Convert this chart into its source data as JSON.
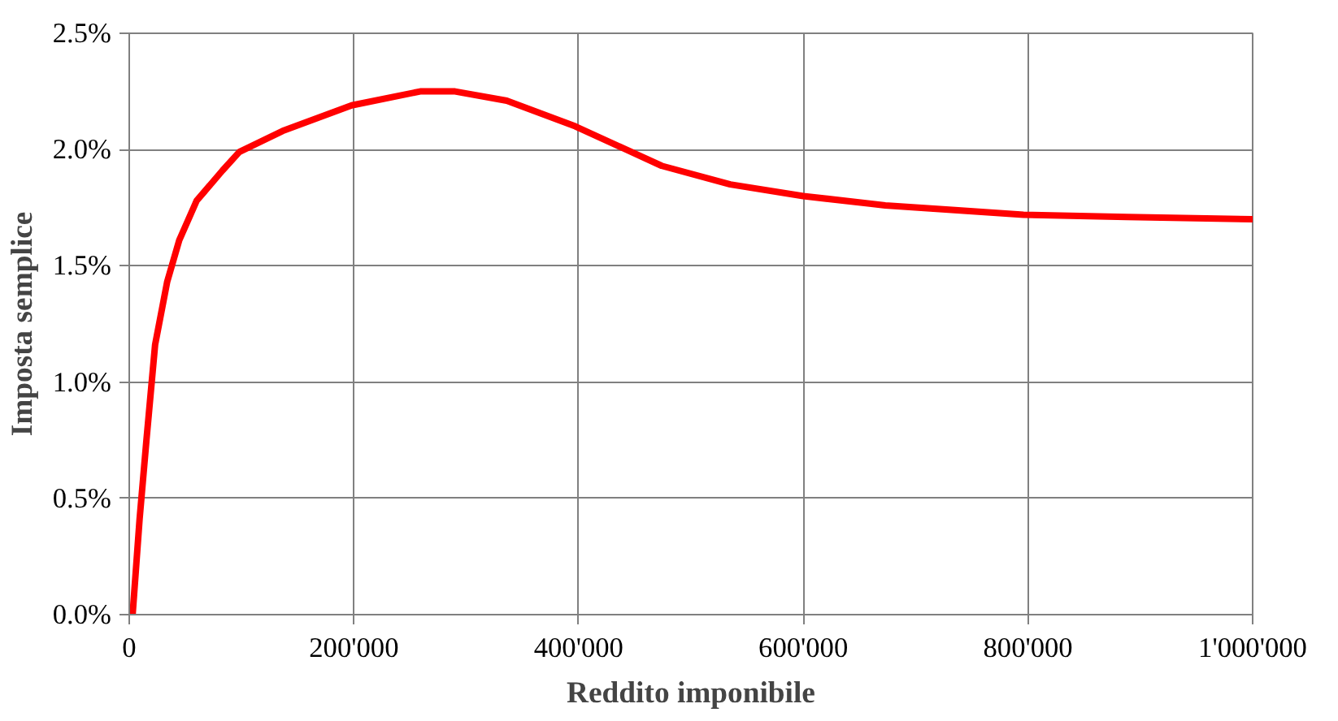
{
  "chart_data": {
    "type": "line",
    "xlabel": "Reddito imponibile",
    "ylabel": "Imposta semplice",
    "x": [
      3000,
      9200,
      15300,
      23000,
      33700,
      44500,
      60000,
      83000,
      98000,
      136500,
      198000,
      259000,
      290000,
      336000,
      397000,
      474000,
      535000,
      600000,
      673000,
      796000,
      888000,
      1000000
    ],
    "series": [
      {
        "color": "#ff0000",
        "values": [
          0.0,
          0.41,
          0.75,
          1.16,
          1.43,
          1.61,
          1.78,
          1.91,
          1.99,
          2.08,
          2.19,
          2.25,
          2.25,
          2.21,
          2.1,
          1.93,
          1.85,
          1.8,
          1.76,
          1.72,
          1.71,
          1.7
        ]
      }
    ],
    "xlim": [
      0,
      1000000
    ],
    "ylim": [
      0,
      2.5
    ],
    "xticks": [
      0,
      {
        "value": 200000,
        "label": "200'000"
      },
      {
        "value": 400000,
        "label": "400'000"
      },
      {
        "value": 600000,
        "label": "600'000"
      },
      {
        "value": 800000,
        "label": "800'000"
      },
      {
        "value": 1000000,
        "label": "1'000'000"
      }
    ],
    "yticks": [
      {
        "value": 0,
        "label": "0.0%"
      },
      {
        "value": 0.5,
        "label": "0.5%"
      },
      {
        "value": 1.0,
        "label": "1.0%"
      },
      {
        "value": 1.5,
        "label": "1.5%"
      },
      {
        "value": 2.0,
        "label": "2.0%"
      },
      {
        "value": 2.5,
        "label": "2.5%"
      }
    ],
    "grid": true,
    "marker": "none",
    "line_style": "solid"
  }
}
